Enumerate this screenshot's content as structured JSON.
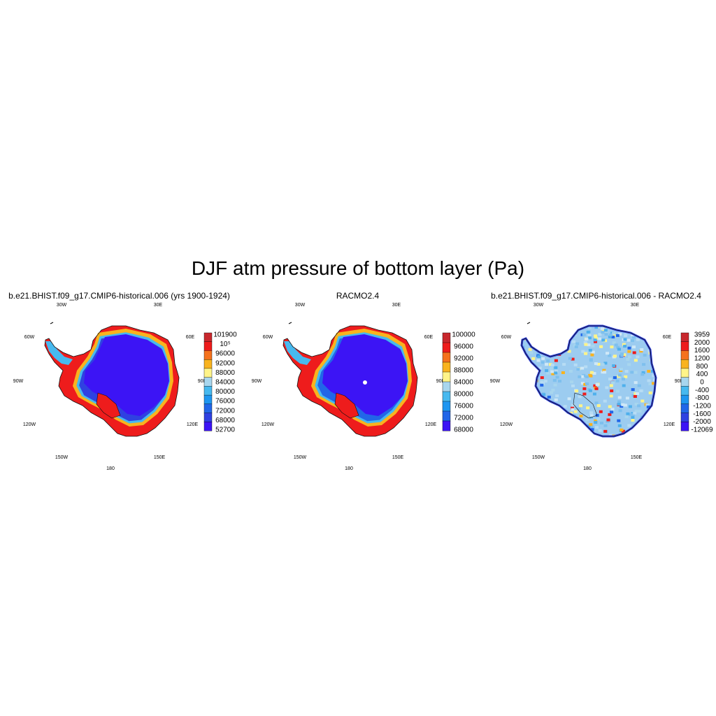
{
  "title": "DJF atm pressure of bottom layer (Pa)",
  "lon_labels": [
    "30W",
    "30E",
    "60W",
    "60E",
    "90W",
    "90E",
    "120W",
    "120E",
    "150W",
    "150E",
    "180"
  ],
  "panels": [
    {
      "title": "b.e21.BHIST.f09_g17.CMIP6-historical.006 (yrs 1900-1924)",
      "colors": [
        "#c8282d",
        "#ee1c1c",
        "#f5721d",
        "#f9b31e",
        "#fff489",
        "#a8d6ee",
        "#47b9ef",
        "#1e96f0",
        "#2166e8",
        "#2f41e1",
        "#3c14f5"
      ],
      "colorbar_labels": [
        "101900",
        "10⁵",
        "96000",
        "92000",
        "88000",
        "84000",
        "80000",
        "76000",
        "72000",
        "68000",
        "52700"
      ]
    },
    {
      "title": "RACMO2.4",
      "colors": [
        "#c8282d",
        "#ee1c1c",
        "#f5721d",
        "#f9b31e",
        "#fff489",
        "#a8d6ee",
        "#47b9ef",
        "#1e96f0",
        "#2166e8",
        "#3c14f5"
      ],
      "colorbar_labels": [
        "100000",
        "96000",
        "92000",
        "88000",
        "84000",
        "80000",
        "76000",
        "72000",
        "68000"
      ]
    },
    {
      "title": "b.e21.BHIST.f09_g17.CMIP6-historical.006 - RACMO2.4",
      "colors": [
        "#c8282d",
        "#ee1c1c",
        "#f5721d",
        "#f9b31e",
        "#fff489",
        "#a8d6ee",
        "#47b9ef",
        "#1e96f0",
        "#2166e8",
        "#2f41e1",
        "#3c14f5"
      ],
      "colorbar_labels": [
        "3959",
        "2000",
        "1600",
        "1200",
        "800",
        "400",
        "0",
        "-400",
        "-800",
        "-1200",
        "-1600",
        "-2000",
        "-12069"
      ]
    }
  ]
}
